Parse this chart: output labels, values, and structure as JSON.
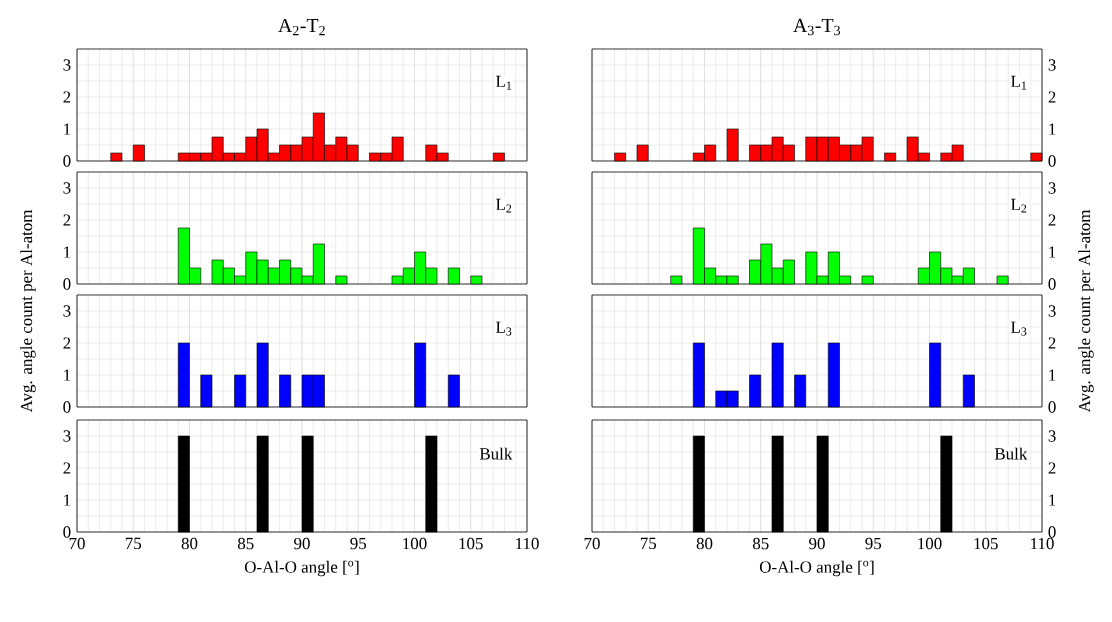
{
  "chart_data": [
    {
      "type": "histogram",
      "title": "A$_{2}$-T$_{2}$",
      "ylabel": "Avg. angle count per Al-atom",
      "annotations": [
        "L$_{1}$"
      ],
      "color": "#ff0000",
      "bins": [
        70,
        71,
        72,
        73,
        74,
        75,
        76,
        77,
        78,
        79,
        80,
        81,
        82,
        83,
        84,
        85,
        86,
        87,
        88,
        89,
        90,
        91,
        92,
        93,
        94,
        95,
        96,
        97,
        98,
        99,
        100,
        101,
        102,
        103,
        104,
        105,
        106,
        107,
        108,
        109,
        110
      ],
      "values": [
        0,
        0,
        0,
        0.25,
        0,
        0.5,
        0,
        0,
        0,
        0.25,
        0.25,
        0.25,
        0.75,
        0.25,
        0.25,
        0.75,
        1,
        0.25,
        0.5,
        0.5,
        0.75,
        1.5,
        0.5,
        0.75,
        0.5,
        0,
        0.25,
        0.25,
        0.75,
        0,
        0,
        0.5,
        0.25,
        0,
        0,
        0,
        0,
        0.25,
        0,
        0
      ],
      "xlim": [
        70,
        110
      ],
      "ylim": [
        0,
        3.5
      ],
      "xticks": [
        70,
        75,
        80,
        85,
        90,
        95,
        100,
        105,
        110
      ],
      "yticks": [
        0,
        1,
        2,
        3
      ],
      "grid": true,
      "tick_labels": "y"
    },
    {
      "type": "histogram",
      "title": "A$_{3}$-T$_{3}$",
      "ylabel": "Avg. angle count per Al-atom",
      "annotations": [
        "L$_{1}$"
      ],
      "color": "#ff0000",
      "bins": [
        70,
        71,
        72,
        73,
        74,
        75,
        76,
        77,
        78,
        79,
        80,
        81,
        82,
        83,
        84,
        85,
        86,
        87,
        88,
        89,
        90,
        91,
        92,
        93,
        94,
        95,
        96,
        97,
        98,
        99,
        100,
        101,
        102,
        103,
        104,
        105,
        106,
        107,
        108,
        109,
        110
      ],
      "values": [
        0,
        0,
        0.25,
        0,
        0.5,
        0,
        0,
        0,
        0,
        0.25,
        0.5,
        0,
        1,
        0,
        0.5,
        0.5,
        0.75,
        0.5,
        0,
        0.75,
        0.75,
        0.75,
        0.5,
        0.5,
        0.75,
        0,
        0.25,
        0,
        0.75,
        0.25,
        0,
        0.25,
        0.5,
        0,
        0,
        0,
        0,
        0,
        0,
        0.25
      ],
      "xlim": [
        70,
        110
      ],
      "ylim": [
        0,
        3.5
      ],
      "xticks": [
        70,
        75,
        80,
        85,
        90,
        95,
        100,
        105,
        110
      ],
      "yticks": [
        0,
        1,
        2,
        3
      ],
      "grid": true,
      "tick_labels": "y"
    },
    {
      "type": "histogram",
      "annotations": [
        "L$_{2}$"
      ],
      "color": "#00ff00",
      "bins": [
        70,
        71,
        72,
        73,
        74,
        75,
        76,
        77,
        78,
        79,
        80,
        81,
        82,
        83,
        84,
        85,
        86,
        87,
        88,
        89,
        90,
        91,
        92,
        93,
        94,
        95,
        96,
        97,
        98,
        99,
        100,
        101,
        102,
        103,
        104,
        105,
        106,
        107,
        108,
        109,
        110
      ],
      "values": [
        0,
        0,
        0,
        0,
        0,
        0,
        0,
        0,
        0,
        1.75,
        0.5,
        0,
        0.75,
        0.5,
        0.25,
        1,
        0.75,
        0.5,
        0.75,
        0.5,
        0.25,
        1.25,
        0,
        0.25,
        0,
        0,
        0,
        0,
        0.25,
        0.5,
        1,
        0.5,
        0,
        0.5,
        0,
        0.25,
        0,
        0,
        0,
        0
      ],
      "xlim": [
        70,
        110
      ],
      "ylim": [
        0,
        3.5
      ],
      "xticks": [
        70,
        75,
        80,
        85,
        90,
        95,
        100,
        105,
        110
      ],
      "yticks": [
        0,
        1,
        2,
        3
      ],
      "grid": true,
      "tick_labels": "y"
    },
    {
      "type": "histogram",
      "annotations": [
        "L$_{2}$"
      ],
      "color": "#00ff00",
      "bins": [
        70,
        71,
        72,
        73,
        74,
        75,
        76,
        77,
        78,
        79,
        80,
        81,
        82,
        83,
        84,
        85,
        86,
        87,
        88,
        89,
        90,
        91,
        92,
        93,
        94,
        95,
        96,
        97,
        98,
        99,
        100,
        101,
        102,
        103,
        104,
        105,
        106,
        107,
        108,
        109,
        110
      ],
      "values": [
        0,
        0,
        0,
        0,
        0,
        0,
        0,
        0.25,
        0,
        1.75,
        0.5,
        0.25,
        0.25,
        0,
        0.75,
        1.25,
        0.5,
        0.75,
        0,
        1,
        0.25,
        1,
        0.25,
        0,
        0.25,
        0,
        0,
        0,
        0,
        0.5,
        1,
        0.5,
        0.25,
        0.5,
        0,
        0,
        0.25,
        0,
        0,
        0
      ],
      "xlim": [
        70,
        110
      ],
      "ylim": [
        0,
        3.5
      ],
      "xticks": [
        70,
        75,
        80,
        85,
        90,
        95,
        100,
        105,
        110
      ],
      "yticks": [
        0,
        1,
        2,
        3
      ],
      "grid": true,
      "tick_labels": "y"
    },
    {
      "type": "histogram",
      "annotations": [
        "L$_{3}$"
      ],
      "color": "#0000ff",
      "bins": [
        70,
        71,
        72,
        73,
        74,
        75,
        76,
        77,
        78,
        79,
        80,
        81,
        82,
        83,
        84,
        85,
        86,
        87,
        88,
        89,
        90,
        91,
        92,
        93,
        94,
        95,
        96,
        97,
        98,
        99,
        100,
        101,
        102,
        103,
        104,
        105,
        106,
        107,
        108,
        109,
        110
      ],
      "values": [
        0,
        0,
        0,
        0,
        0,
        0,
        0,
        0,
        0,
        2,
        0,
        1,
        0,
        0,
        1,
        0,
        2,
        0,
        1,
        0,
        1,
        1,
        0,
        0,
        0,
        0,
        0,
        0,
        0,
        0,
        2,
        0,
        0,
        1,
        0,
        0,
        0,
        0,
        0,
        0
      ],
      "xlim": [
        70,
        110
      ],
      "ylim": [
        0,
        3.5
      ],
      "xticks": [
        70,
        75,
        80,
        85,
        90,
        95,
        100,
        105,
        110
      ],
      "yticks": [
        0,
        1,
        2,
        3
      ],
      "grid": true,
      "tick_labels": "y"
    },
    {
      "type": "histogram",
      "annotations": [
        "L$_{3}$"
      ],
      "color": "#0000ff",
      "bins": [
        70,
        71,
        72,
        73,
        74,
        75,
        76,
        77,
        78,
        79,
        80,
        81,
        82,
        83,
        84,
        85,
        86,
        87,
        88,
        89,
        90,
        91,
        92,
        93,
        94,
        95,
        96,
        97,
        98,
        99,
        100,
        101,
        102,
        103,
        104,
        105,
        106,
        107,
        108,
        109,
        110
      ],
      "values": [
        0,
        0,
        0,
        0,
        0,
        0,
        0,
        0,
        0,
        2,
        0,
        0.5,
        0.5,
        0,
        1,
        0,
        2,
        0,
        1,
        0,
        0,
        2,
        0,
        0,
        0,
        0,
        0,
        0,
        0,
        0,
        2,
        0,
        0,
        1,
        0,
        0,
        0,
        0,
        0,
        0
      ],
      "xlim": [
        70,
        110
      ],
      "ylim": [
        0,
        3.5
      ],
      "xticks": [
        70,
        75,
        80,
        85,
        90,
        95,
        100,
        105,
        110
      ],
      "yticks": [
        0,
        1,
        2,
        3
      ],
      "grid": true,
      "tick_labels": "y"
    },
    {
      "type": "histogram",
      "xlabel": "O-Al-O angle [$^{o}$]",
      "annotations": [
        "Bulk"
      ],
      "color": "#000000",
      "bins": [
        70,
        71,
        72,
        73,
        74,
        75,
        76,
        77,
        78,
        79,
        80,
        81,
        82,
        83,
        84,
        85,
        86,
        87,
        88,
        89,
        90,
        91,
        92,
        93,
        94,
        95,
        96,
        97,
        98,
        99,
        100,
        101,
        102,
        103,
        104,
        105,
        106,
        107,
        108,
        109,
        110
      ],
      "values": [
        0,
        0,
        0,
        0,
        0,
        0,
        0,
        0,
        0,
        3,
        0,
        0,
        0,
        0,
        0,
        0,
        3,
        0,
        0,
        0,
        3,
        0,
        0,
        0,
        0,
        0,
        0,
        0,
        0,
        0,
        0,
        3,
        0,
        0,
        0,
        0,
        0,
        0,
        0,
        0
      ],
      "xlim": [
        70,
        110
      ],
      "ylim": [
        0,
        3.5
      ],
      "xticks": [
        70,
        75,
        80,
        85,
        90,
        95,
        100,
        105,
        110
      ],
      "yticks": [
        0,
        1,
        2,
        3
      ],
      "grid": true
    },
    {
      "type": "histogram",
      "xlabel": "O-Al-O angle [$^{o}$]",
      "annotations": [
        "Bulk"
      ],
      "color": "#000000",
      "bins": [
        70,
        71,
        72,
        73,
        74,
        75,
        76,
        77,
        78,
        79,
        80,
        81,
        82,
        83,
        84,
        85,
        86,
        87,
        88,
        89,
        90,
        91,
        92,
        93,
        94,
        95,
        96,
        97,
        98,
        99,
        100,
        101,
        102,
        103,
        104,
        105,
        106,
        107,
        108,
        109,
        110
      ],
      "values": [
        0,
        0,
        0,
        0,
        0,
        0,
        0,
        0,
        0,
        3,
        0,
        0,
        0,
        0,
        0,
        0,
        3,
        0,
        0,
        0,
        3,
        0,
        0,
        0,
        0,
        0,
        0,
        0,
        0,
        0,
        0,
        3,
        0,
        0,
        0,
        0,
        0,
        0,
        0,
        0
      ],
      "xlim": [
        70,
        110
      ],
      "ylim": [
        0,
        3.5
      ],
      "xticks": [
        70,
        75,
        80,
        85,
        90,
        95,
        100,
        105,
        110
      ],
      "yticks": [
        0,
        1,
        2,
        3
      ],
      "grid": true
    }
  ]
}
